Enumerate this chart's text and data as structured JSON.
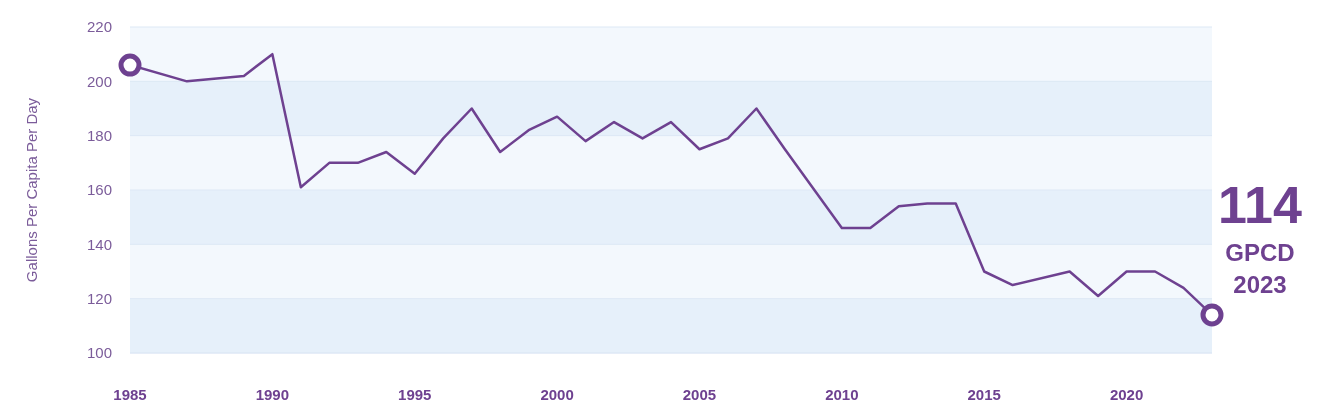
{
  "chart_data": {
    "type": "line",
    "ylabel": "Gallons Per Capita Per Day",
    "x": [
      1985,
      1987,
      1989,
      1990,
      1991,
      1992,
      1993,
      1994,
      1995,
      1996,
      1997,
      1998,
      1999,
      2000,
      2001,
      2002,
      2003,
      2004,
      2005,
      2006,
      2007,
      2008,
      2010,
      2011,
      2012,
      2013,
      2014,
      2015,
      2016,
      2018,
      2019,
      2020,
      2021,
      2022,
      2023
    ],
    "series": [
      {
        "color": "#6e4190",
        "values": [
          206,
          200,
          202,
          210,
          161,
          170,
          170,
          174,
          166,
          179,
          190,
          174,
          182,
          187,
          178,
          185,
          179,
          185,
          175,
          179,
          190,
          175,
          146,
          146,
          154,
          155,
          155,
          130,
          125,
          130,
          121,
          130,
          130,
          124,
          114
        ]
      }
    ],
    "xlim": [
      1985,
      2023
    ],
    "xticks": [
      1985,
      1990,
      1995,
      2000,
      2005,
      2010,
      2015,
      2020
    ],
    "ylim": [
      100,
      220
    ],
    "yticks": [
      100,
      120,
      140,
      160,
      180,
      200,
      220
    ],
    "grid": "y",
    "line_style": "solid",
    "annotations": [
      {
        "text": "114 GPCD 2023",
        "x": 2023,
        "y": 114
      }
    ]
  }
}
